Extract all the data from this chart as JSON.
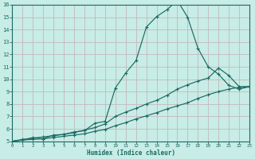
{
  "xlabel": "Humidex (Indice chaleur)",
  "bg_color": "#c8ece6",
  "grid_color": "#c4b8bc",
  "line_color": "#1a6b62",
  "xlim": [
    0,
    23
  ],
  "ylim": [
    5,
    16
  ],
  "x_ticks": [
    0,
    1,
    2,
    3,
    4,
    5,
    6,
    7,
    8,
    9,
    10,
    11,
    12,
    13,
    14,
    15,
    16,
    17,
    18,
    19,
    20,
    21,
    22,
    23
  ],
  "y_ticks": [
    5,
    6,
    7,
    8,
    9,
    10,
    11,
    12,
    13,
    14,
    15,
    16
  ],
  "curve1_x": [
    0,
    1,
    2,
    3,
    4,
    5,
    6,
    7,
    8,
    9,
    10,
    11,
    12,
    13,
    14,
    15,
    16,
    17,
    18,
    19,
    20,
    21,
    22,
    23
  ],
  "curve1_y": [
    5.0,
    5.1,
    5.3,
    5.2,
    5.5,
    5.55,
    5.75,
    5.85,
    6.45,
    6.6,
    9.3,
    10.5,
    11.5,
    14.2,
    15.05,
    15.6,
    16.35,
    15.0,
    12.5,
    11.0,
    10.4,
    9.5,
    9.2,
    9.4
  ],
  "curve2_x": [
    0,
    1,
    2,
    3,
    4,
    5,
    6,
    7,
    8,
    9,
    10,
    11,
    12,
    13,
    14,
    15,
    16,
    17,
    18,
    19,
    20,
    21,
    22,
    23
  ],
  "curve2_y": [
    5.0,
    5.15,
    5.25,
    5.35,
    5.45,
    5.55,
    5.7,
    5.9,
    6.1,
    6.4,
    7.0,
    7.35,
    7.65,
    8.0,
    8.3,
    8.7,
    9.2,
    9.55,
    9.85,
    10.1,
    10.9,
    10.3,
    9.4,
    9.4
  ],
  "curve3_x": [
    0,
    1,
    2,
    3,
    4,
    5,
    6,
    7,
    8,
    9,
    10,
    11,
    12,
    13,
    14,
    15,
    16,
    17,
    18,
    19,
    20,
    21,
    22,
    23
  ],
  "curve3_y": [
    5.0,
    5.1,
    5.15,
    5.2,
    5.3,
    5.4,
    5.5,
    5.6,
    5.8,
    5.95,
    6.25,
    6.5,
    6.8,
    7.05,
    7.3,
    7.6,
    7.85,
    8.1,
    8.45,
    8.75,
    9.0,
    9.2,
    9.35,
    9.4
  ]
}
